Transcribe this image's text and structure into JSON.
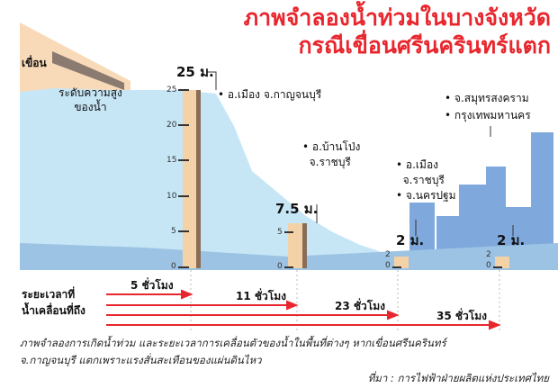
{
  "title": {
    "line1": "ภาพจำลองน้ำท่วมในบางจังหวัด",
    "line2": "กรณีเขื่อนศรีนครินทร์แตก"
  },
  "dam_label": "เขื่อน",
  "water_label": {
    "line1": "ระดับความสูง",
    "line2": "ของน้ำ"
  },
  "scale_ticks": [
    "25",
    "20",
    "15",
    "10",
    "5",
    "0"
  ],
  "gauges": [
    {
      "height_m": 25,
      "label": "25 ม.",
      "places": [
        "อ.เมือง จ.กาญจนบุรี"
      ]
    },
    {
      "height_m": 7.5,
      "label": "7.5 ม.",
      "places": [
        "อ.บ้านโป่ง",
        "จ.ราชบุรี"
      ]
    },
    {
      "height_m": 2,
      "label": "2 ม.",
      "places": [
        "อ.เมือง",
        "จ.ราชบุรี",
        "จ.นครปฐม"
      ]
    },
    {
      "height_m": 2,
      "label": "2 ม.",
      "places": [
        "จ.สมุทรสงคราม",
        "กรุงเทพมหานคร"
      ]
    }
  ],
  "small_ticks": [
    "2",
    "0"
  ],
  "timeline": {
    "label_line1": "ระยะเวลาที่",
    "label_line2": "น้ำเคลื่อนที่ถึง",
    "arrows": [
      "5 ชั่วโมง",
      "11 ชั่วโมง",
      "23 ชั่วโมง",
      "35 ชั่วโมง"
    ]
  },
  "caption": {
    "line1": "ภาพจำลองการเกิดน้ำท่วม และระยะเวลาการเคลื่อนตัวของน้ำในพื้นที่ต่างๆ หากเขื่อนศรีนครินทร์",
    "line2": "จ.กาญจนบุรี แตกเพราะแรงสั่นสะเทือนของแผ่นดินไหว",
    "source": "ที่มา : การไฟฟ้าฝ่ายผลิตแห่งประเทศไทย"
  },
  "colors": {
    "title": "#e8262d",
    "water": "#c6e6f6",
    "ground": "#9cc3e4",
    "dam": "#f8d9b8",
    "buildings": "#7fa9dc",
    "arrow": "#e8262d",
    "gauge": "#f3d2a8"
  }
}
